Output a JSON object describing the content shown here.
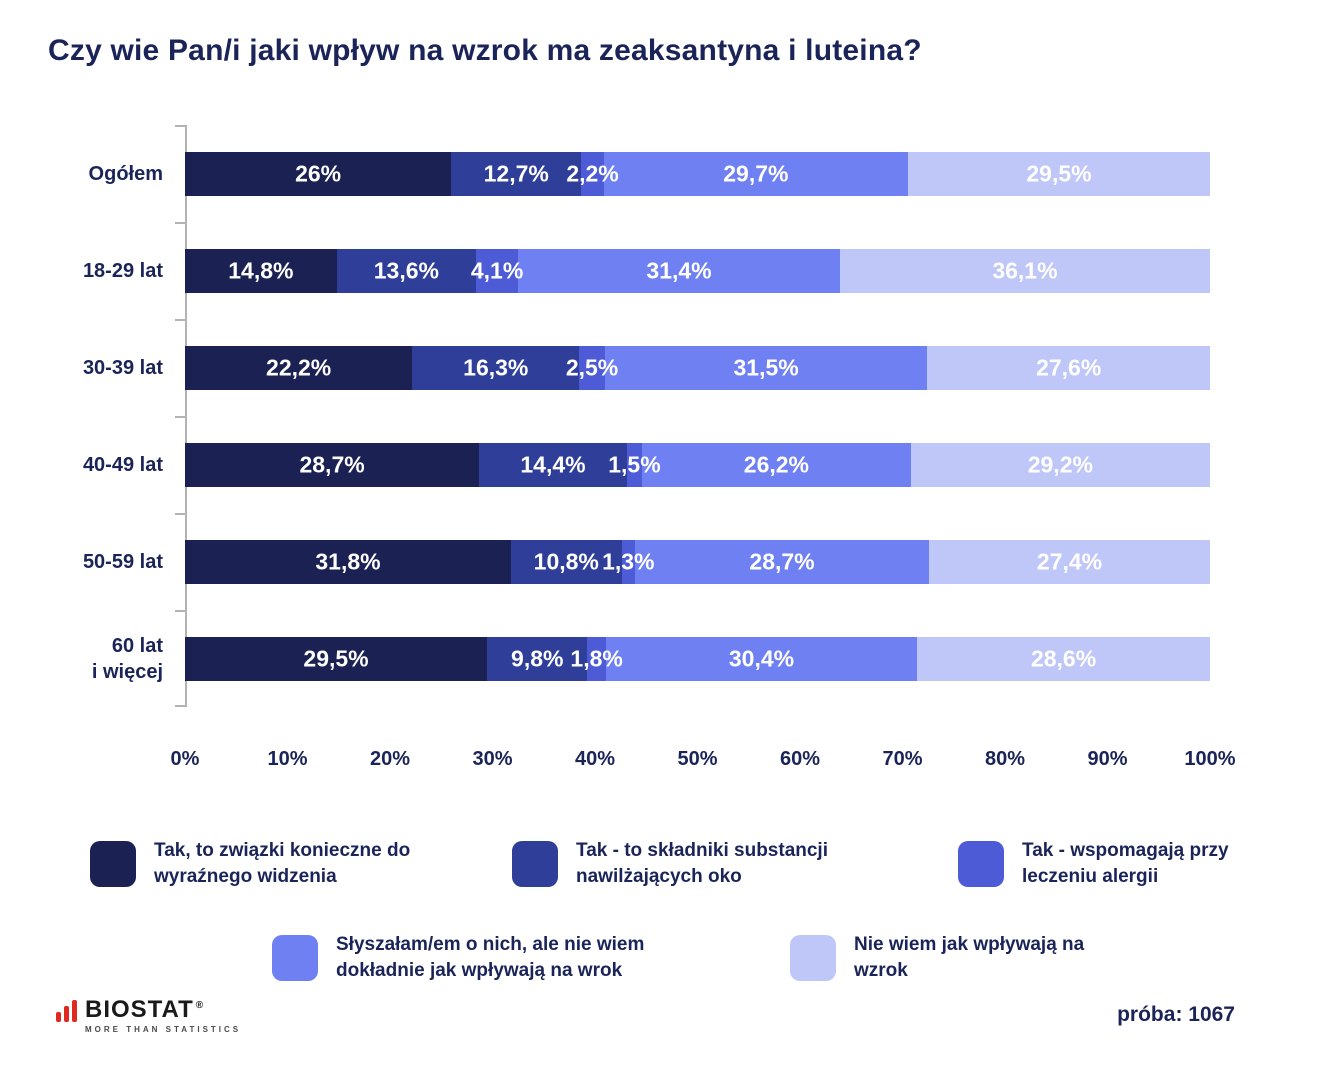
{
  "title": "Czy wie Pan/i jaki wpływ na wzrok ma zeaksantyna i luteina?",
  "footer": {
    "brand": "BIOSTAT",
    "brand_reg": "®",
    "brand_sub": "MORE THAN STATISTICS",
    "sample_label": "próba: 1067"
  },
  "chart_data": {
    "type": "bar",
    "orientation": "horizontal-stacked",
    "xlim": [
      0,
      100
    ],
    "grid": false,
    "legend_position": "bottom",
    "categories": [
      "Ogółem",
      "18-29 lat",
      "30-39 lat",
      "40-49 lat",
      "50-59 lat",
      "60 lat\ni więcej"
    ],
    "x_ticks": [
      "0%",
      "10%",
      "20%",
      "30%",
      "40%",
      "50%",
      "60%",
      "70%",
      "80%",
      "90%",
      "100%"
    ],
    "series": [
      {
        "name": "Tak, to związki konieczne do wyraźnego widzenia",
        "color": "#1b2153",
        "values": [
          26,
          14.8,
          22.2,
          28.7,
          31.8,
          29.5
        ],
        "labels": [
          "26%",
          "14,8%",
          "22,2%",
          "28,7%",
          "31,8%",
          "29,5%"
        ]
      },
      {
        "name": "Tak - to składniki substancji nawilżających oko",
        "color": "#2f3e99",
        "values": [
          12.7,
          13.6,
          16.3,
          14.4,
          10.8,
          9.8
        ],
        "labels": [
          "12,7%",
          "13,6%",
          "16,3%",
          "14,4%",
          "10,8%",
          "9,8%"
        ]
      },
      {
        "name": "Tak - wspomagają przy leczeniu alergii",
        "color": "#4d5cd6",
        "values": [
          2.2,
          4.1,
          2.5,
          1.5,
          1.3,
          1.8
        ],
        "labels": [
          "2,2%",
          "4,1%",
          "2,5%",
          "1,5%",
          "1,3%",
          "1,8%"
        ]
      },
      {
        "name": "Słyszałam/em o nich, ale nie wiem dokładnie jak wpływają na wrok",
        "color": "#6f80f2",
        "values": [
          29.7,
          31.4,
          31.5,
          26.2,
          28.7,
          30.4
        ],
        "labels": [
          "29,7%",
          "31,4%",
          "31,5%",
          "26,2%",
          "28,7%",
          "30,4%"
        ]
      },
      {
        "name": "Nie wiem jak wpływają na wzrok",
        "color": "#bfc7f8",
        "values": [
          29.5,
          36.1,
          27.6,
          29.2,
          27.4,
          28.6
        ],
        "labels": [
          "29,5%",
          "36,1%",
          "27,6%",
          "29,2%",
          "27,4%",
          "28,6%"
        ]
      }
    ]
  }
}
